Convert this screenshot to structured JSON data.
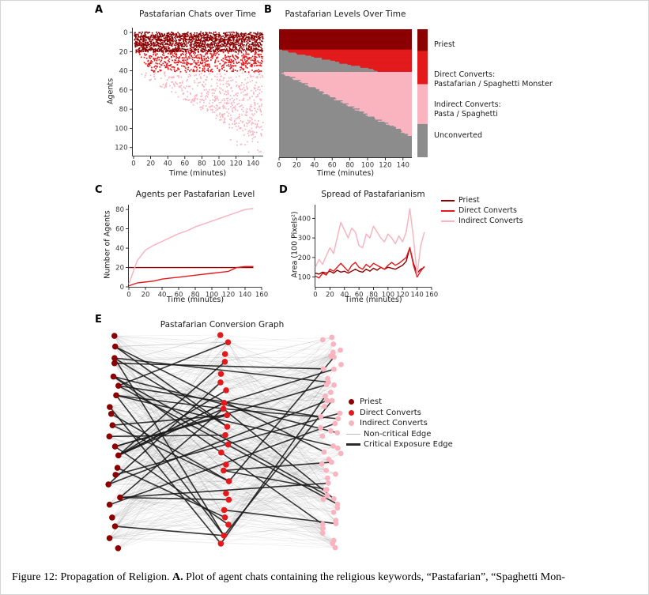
{
  "page": {
    "background": "#ffffff",
    "border_color": "#d4d4d4"
  },
  "colors": {
    "priest": "#8B0000",
    "direct_converts": "#e31a1c",
    "indirect_converts": "#f9b4c0",
    "unconverted": "#8c8c8c",
    "noncritical_edge": "#bdbdbd",
    "critical_edge": "#2b2b2b",
    "axis": "#000000",
    "tick_text": "#333333"
  },
  "panels": {
    "a_label": "A",
    "b_label": "B",
    "c_label": "C",
    "d_label": "D",
    "e_label": "E"
  },
  "caption": {
    "prefix": "Figure 12: ",
    "body_before": "Propagation of Religion. ",
    "bold_marker": "A.",
    "body_after": " Plot of agent chats containing the religious keywords, “Pastafarian”, “Spaghetti Mon-"
  },
  "chart_data": [
    {
      "id": "A",
      "type": "scatter",
      "title": "Pastafarian Chats over Time",
      "xlabel": "Time (minutes)",
      "ylabel": "Agents",
      "xlim": [
        0,
        150
      ],
      "xticks": [
        0,
        20,
        40,
        60,
        80,
        100,
        120,
        140
      ],
      "ylim": [
        0,
        126
      ],
      "yticks": [
        0,
        20,
        40,
        60,
        80,
        100,
        120
      ],
      "seed": 7,
      "groups": [
        {
          "level": "priest",
          "agents": [
            0,
            21
          ],
          "onset_base": 0,
          "onset_per_agent": 0.05,
          "density": 0.5
        },
        {
          "level": "direct",
          "agents": [
            21,
            42
          ],
          "onset_base": 2,
          "onset_per_agent": 0.9,
          "density": 0.22
        },
        {
          "level": "indirect",
          "agents": [
            42,
            112
          ],
          "onset_base": 3,
          "onset_per_agent": 1.9,
          "density": 0.12
        },
        {
          "level": "indirect",
          "agents": [
            112,
            126
          ],
          "onset_base": 110,
          "onset_per_agent": 1.5,
          "density": 0.05
        }
      ]
    },
    {
      "id": "B",
      "type": "heatmap",
      "title": "Pastafarian Levels Over Time",
      "xlabel": "Time (minutes)",
      "xlim": [
        0,
        150
      ],
      "xticks": [
        0,
        20,
        40,
        60,
        80,
        100,
        120,
        140
      ],
      "n_agents": 126,
      "seed": 5,
      "bands": [
        {
          "level": "priest",
          "rows": [
            0,
            20
          ],
          "convert_start": 0,
          "convert_end": 0
        },
        {
          "level": "direct",
          "rows": [
            20,
            42
          ],
          "convert_start": 2,
          "convert_end": 115
        },
        {
          "level": "indirect",
          "rows": [
            42,
            105
          ],
          "convert_start": 3,
          "convert_end": 148
        },
        {
          "level": "unconverted",
          "rows": [
            105,
            126
          ],
          "convert_start": 150,
          "convert_end": 150
        }
      ],
      "legend": [
        {
          "level": "priest",
          "frac": 0.17,
          "label": "Priest"
        },
        {
          "level": "direct",
          "frac": 0.26,
          "label": "Direct Converts:",
          "label2": "Pastafarian / Spaghetti Monster"
        },
        {
          "level": "indirect",
          "frac": 0.31,
          "label": "Indirect Converts:",
          "label2": "Pasta / Spaghetti"
        },
        {
          "level": "unconverted",
          "frac": 0.26,
          "label": "Unconverted"
        }
      ]
    },
    {
      "id": "C",
      "type": "line",
      "title": "Agents per Pastafarian Level",
      "xlabel": "Time (minutes)",
      "ylabel": "Number of Agents",
      "xlim": [
        0,
        160
      ],
      "xticks": [
        0,
        20,
        40,
        60,
        80,
        100,
        120,
        140,
        160
      ],
      "ylim": [
        0,
        85
      ],
      "yticks": [
        0,
        20,
        40,
        60,
        80
      ],
      "x": [
        0,
        10,
        20,
        30,
        40,
        50,
        60,
        70,
        80,
        90,
        100,
        110,
        120,
        130,
        140,
        150
      ],
      "series": [
        {
          "name": "Priest",
          "level": "priest",
          "values": [
            20,
            20,
            20,
            20,
            20,
            20,
            20,
            20,
            20,
            20,
            20,
            20,
            20,
            20,
            20,
            20
          ]
        },
        {
          "name": "Direct Converts",
          "level": "direct",
          "values": [
            1,
            4,
            5,
            6,
            8,
            9,
            10,
            11,
            12,
            13,
            14,
            15,
            16,
            20,
            21,
            21
          ]
        },
        {
          "name": "Indirect Converts",
          "level": "indirect",
          "values": [
            3,
            27,
            38,
            43,
            47,
            51,
            55,
            58,
            62,
            65,
            68,
            71,
            74,
            77,
            80,
            81
          ]
        }
      ]
    },
    {
      "id": "D",
      "type": "line",
      "title": "Spread of Pastafarianism",
      "xlabel": "Time (minutes)",
      "ylabel": "Area (100 Pixels²)",
      "xlim": [
        0,
        160
      ],
      "xticks": [
        0,
        20,
        40,
        60,
        80,
        100,
        120,
        140,
        160
      ],
      "ylim": [
        50,
        470
      ],
      "yticks": [
        100,
        200,
        300,
        400
      ],
      "x": [
        0,
        5,
        10,
        15,
        20,
        25,
        30,
        35,
        40,
        45,
        50,
        55,
        60,
        65,
        70,
        75,
        80,
        85,
        90,
        95,
        100,
        105,
        110,
        115,
        120,
        125,
        130,
        135,
        140,
        145,
        150
      ],
      "series": [
        {
          "name": "Priest",
          "level": "priest",
          "values": [
            120,
            115,
            125,
            120,
            130,
            120,
            135,
            125,
            130,
            120,
            130,
            140,
            130,
            125,
            140,
            130,
            145,
            135,
            150,
            140,
            150,
            145,
            140,
            150,
            160,
            180,
            250,
            170,
            120,
            140,
            150
          ]
        },
        {
          "name": "Direct Converts",
          "level": "direct",
          "values": [
            105,
            95,
            120,
            110,
            140,
            130,
            150,
            170,
            150,
            130,
            160,
            175,
            150,
            140,
            165,
            150,
            170,
            160,
            150,
            140,
            160,
            175,
            160,
            170,
            185,
            200,
            250,
            160,
            100,
            130,
            155
          ]
        },
        {
          "name": "Indirect Converts",
          "level": "indirect",
          "values": [
            150,
            190,
            165,
            210,
            250,
            220,
            300,
            380,
            340,
            300,
            350,
            330,
            260,
            250,
            320,
            300,
            360,
            330,
            300,
            280,
            320,
            300,
            270,
            310,
            280,
            330,
            450,
            300,
            110,
            260,
            330
          ]
        }
      ],
      "legend": [
        {
          "label": "Priest",
          "level": "priest"
        },
        {
          "label": "Direct Converts",
          "level": "direct"
        },
        {
          "label": "Indirect Converts",
          "level": "indirect"
        }
      ]
    },
    {
      "id": "E",
      "type": "network",
      "title": "Pastafarian Conversion Graph",
      "seed": 11,
      "columns": [
        {
          "level": "priest",
          "count": 22,
          "x_frac": 0.045,
          "jitter": 16
        },
        {
          "level": "direct",
          "count": 24,
          "x_frac": 0.52,
          "jitter": 12
        },
        {
          "level": "indirect",
          "count": 54,
          "x_frac": 0.975,
          "jitter": 26
        }
      ],
      "noncritical_edges": 650,
      "critical_edges": 46,
      "legend": [
        {
          "label": "Priest",
          "marker": "dot",
          "level": "priest"
        },
        {
          "label": "Direct Converts",
          "marker": "dot",
          "level": "direct"
        },
        {
          "label": "Indirect Converts",
          "marker": "dot",
          "level": "indirect"
        },
        {
          "label": "Non-critical Edge",
          "marker": "thin",
          "level": "noncritical"
        },
        {
          "label": "Critical Exposure Edge",
          "marker": "thick",
          "level": "critical"
        }
      ]
    }
  ]
}
